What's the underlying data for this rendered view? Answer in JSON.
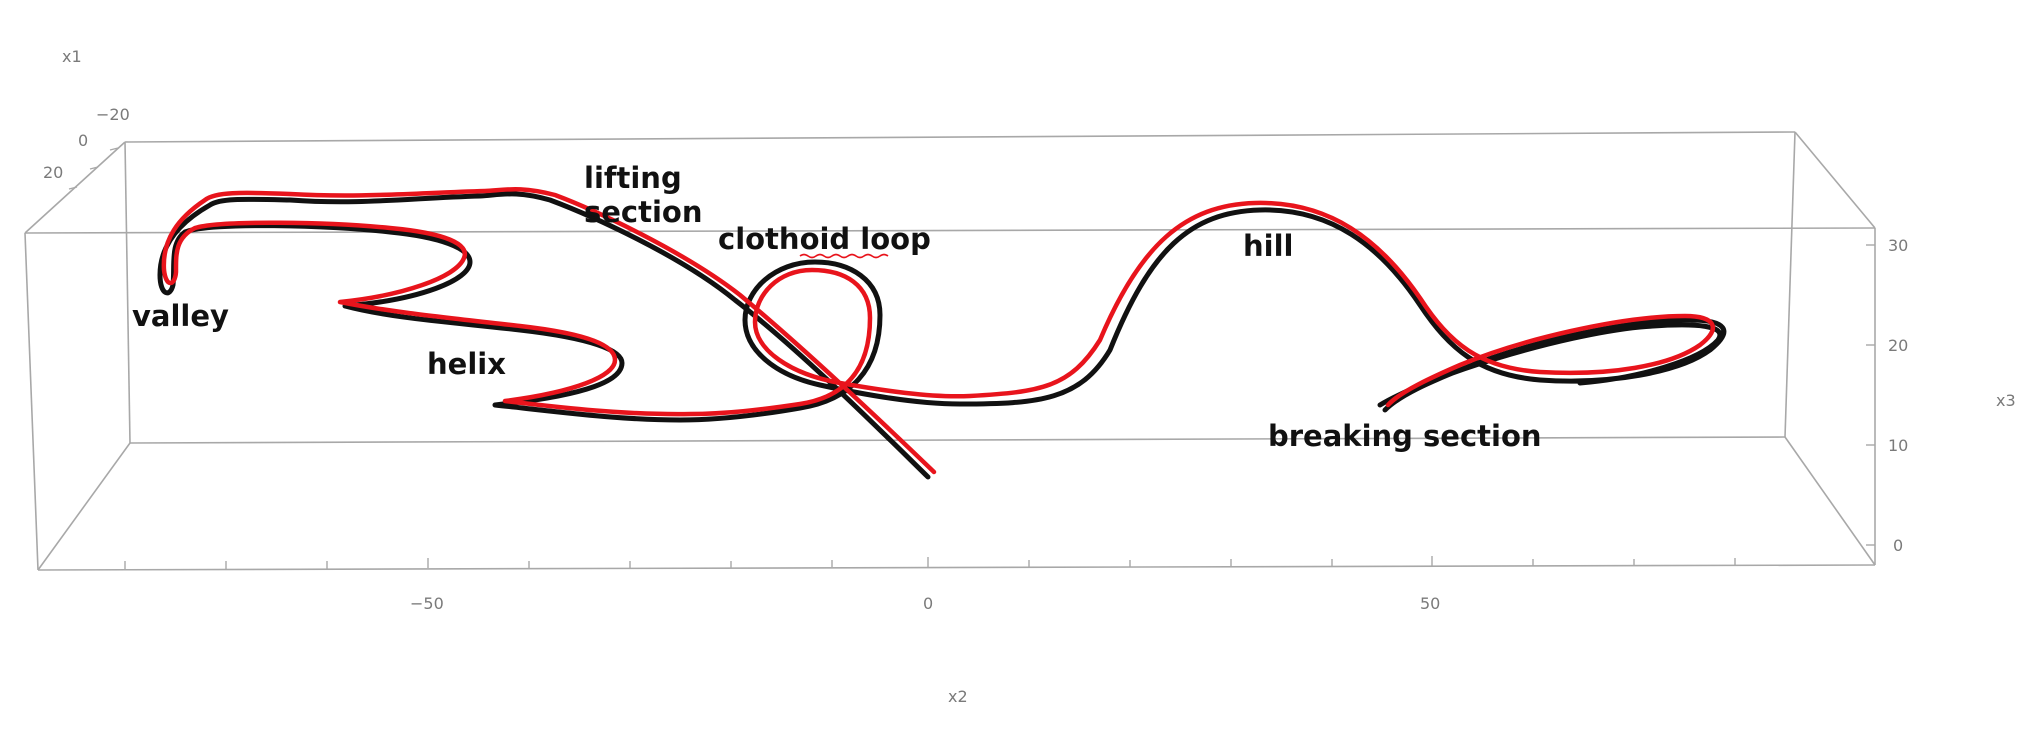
{
  "axes": {
    "x1": {
      "label": "x1",
      "ticks": [
        "−20",
        "0",
        "20"
      ]
    },
    "x2": {
      "label": "x2",
      "ticks": [
        "−50",
        "0",
        "50"
      ]
    },
    "x3": {
      "label": "x3",
      "ticks": [
        "30",
        "20",
        "10",
        "0"
      ]
    }
  },
  "annotations": {
    "valley": "valley",
    "helix": "helix",
    "lifting_line1": "lifting",
    "lifting_line2": "section",
    "clothoid": "clothoid loop",
    "hill": "hill",
    "breaking": "breaking section"
  },
  "colors": {
    "track_black": "#111111",
    "track_red": "#e8141c",
    "box": "#a8a8a8",
    "spellcheck_underline": "#e8141c"
  }
}
